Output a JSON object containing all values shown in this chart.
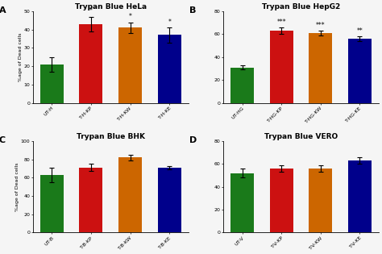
{
  "panels": [
    {
      "label": "A",
      "title": "Trypan Blue HeLa",
      "categories": [
        "UT-H",
        "T-H-KP",
        "T-H-KW",
        "T-H-KE"
      ],
      "values": [
        21,
        43,
        41,
        37
      ],
      "errors": [
        4,
        4,
        3,
        4
      ],
      "ylim": [
        0,
        50
      ],
      "yticks": [
        0,
        10,
        20,
        30,
        40,
        50
      ],
      "sig": [
        "",
        "*",
        "*",
        "*"
      ],
      "colors": [
        "#1a7a1a",
        "#cc1111",
        "#cc6600",
        "#00008b"
      ]
    },
    {
      "label": "B",
      "title": "Trypan Blue HepG2",
      "categories": [
        "UT-HG",
        "T-HG-KP",
        "T-HG-KW",
        "T-HG-KE"
      ],
      "values": [
        31,
        63,
        61,
        56
      ],
      "errors": [
        2,
        3,
        2,
        2
      ],
      "ylim": [
        0,
        80
      ],
      "yticks": [
        0,
        20,
        40,
        60,
        80
      ],
      "sig": [
        "",
        "***",
        "***",
        "**"
      ],
      "colors": [
        "#1a7a1a",
        "#cc1111",
        "#cc6600",
        "#00008b"
      ]
    },
    {
      "label": "C",
      "title": "Trypan Blue BHK",
      "categories": [
        "UT-B",
        "T-B-KP",
        "T-B-KW",
        "T-B-KE"
      ],
      "values": [
        63,
        71,
        82,
        71
      ],
      "errors": [
        8,
        4,
        3,
        2
      ],
      "ylim": [
        0,
        100
      ],
      "yticks": [
        0,
        20,
        40,
        60,
        80,
        100
      ],
      "sig": [
        "",
        "",
        "",
        ""
      ],
      "colors": [
        "#1a7a1a",
        "#cc1111",
        "#cc6600",
        "#00008b"
      ]
    },
    {
      "label": "D",
      "title": "Trypan Blue VERO",
      "categories": [
        "UT-V",
        "T-V-KP",
        "T-V-KW",
        "T-V-KE"
      ],
      "values": [
        52,
        56,
        56,
        63
      ],
      "errors": [
        4,
        3,
        3,
        3
      ],
      "ylim": [
        0,
        80
      ],
      "yticks": [
        0,
        20,
        40,
        60,
        80
      ],
      "sig": [
        "",
        "",
        "",
        ""
      ],
      "colors": [
        "#1a7a1a",
        "#cc1111",
        "#cc6600",
        "#00008b"
      ]
    }
  ],
  "ylabel": "%age of Dead cells",
  "bg_color": "#f5f5f5"
}
